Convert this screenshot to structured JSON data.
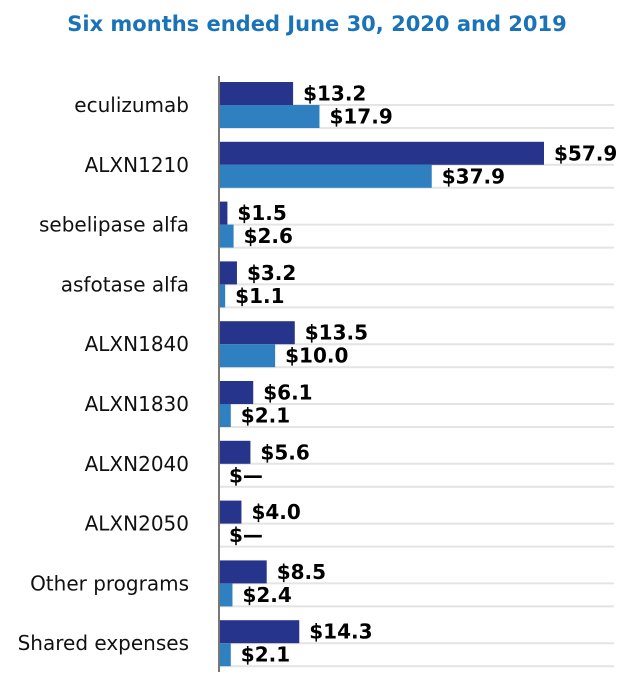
{
  "chart_data": {
    "type": "bar",
    "orientation": "horizontal",
    "title": "Six months ended June 30, 2020 and 2019",
    "xlabel": "",
    "ylabel": "",
    "categories": [
      "eculizumab",
      "ALXN1210",
      "sebelipase alfa",
      "asfotase alfa",
      "ALXN1840",
      "ALXN1830",
      "ALXN2040",
      "ALXN2050",
      "Other programs",
      "Shared expenses"
    ],
    "series": [
      {
        "name": "2020",
        "color": "#27348b",
        "values": [
          13.2,
          57.9,
          1.5,
          3.2,
          13.5,
          6.1,
          5.6,
          4.0,
          8.5,
          14.3
        ],
        "labels": [
          "$13.2",
          "$57.9",
          "$1.5",
          "$3.2",
          "$13.5",
          "$6.1",
          "$5.6",
          "$4.0",
          "$8.5",
          "$14.3"
        ]
      },
      {
        "name": "2019",
        "color": "#2e80c0",
        "values": [
          17.9,
          37.9,
          2.6,
          1.1,
          10.0,
          2.1,
          0,
          0,
          2.4,
          2.1
        ],
        "labels": [
          "$17.9",
          "$37.9",
          "$2.6",
          "$1.1",
          "$10.0",
          "$2.1",
          "$—",
          "$—",
          "$2.4",
          "$2.1"
        ]
      }
    ],
    "xlim": [
      0,
      57.9
    ],
    "grid": "horizontal",
    "legend": "none"
  }
}
